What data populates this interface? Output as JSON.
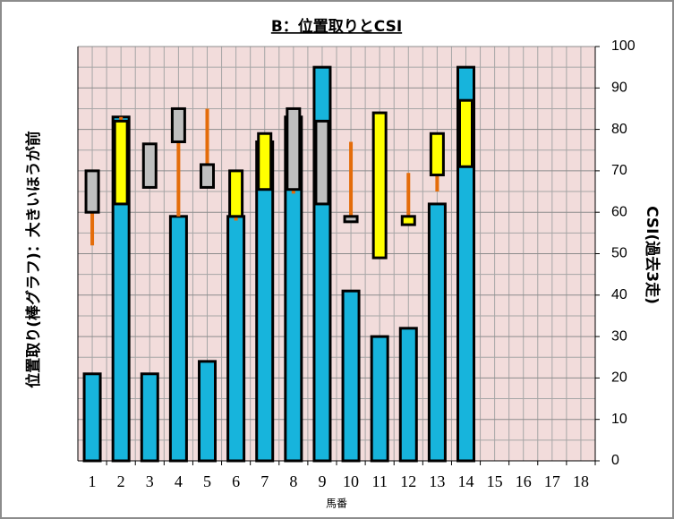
{
  "chart_data": {
    "type": "bar-range",
    "title": "B：位置取りとCSI",
    "x_label": "馬番",
    "y_label": "位置取り(棒グラフ)：大きいほうが前",
    "y2_label": "CSI(過去3走)",
    "categories": [
      "1",
      "2",
      "3",
      "4",
      "5",
      "6",
      "7",
      "8",
      "9",
      "10",
      "11",
      "12",
      "13",
      "14",
      "15",
      "16",
      "17",
      "18"
    ],
    "values": [
      21,
      83,
      21,
      59,
      24,
      59,
      77,
      83,
      95,
      41,
      30,
      32,
      62,
      95,
      0,
      0,
      0,
      0
    ],
    "color": "#17b4dc",
    "ranges": {
      "low": [
        60,
        62,
        66,
        77,
        66,
        59,
        65.5,
        65.5,
        62,
        57.7,
        49,
        57,
        69,
        71,
        null,
        null,
        null,
        null
      ],
      "high": [
        70,
        82,
        76.5,
        85,
        71.5,
        70,
        79,
        85,
        82,
        59,
        84,
        59,
        79,
        87,
        null,
        null,
        null,
        null
      ],
      "min": [
        52,
        62,
        66,
        59,
        66,
        58,
        65.5,
        64.5,
        62,
        57.7,
        49,
        57,
        65,
        71,
        null,
        null,
        null,
        null
      ],
      "max": [
        70,
        83,
        76.5,
        85,
        85,
        70,
        79,
        85,
        82,
        77,
        84,
        69.5,
        79,
        87,
        null,
        null,
        null,
        null
      ],
      "colors": [
        "#bfbfbf",
        "#ffff00",
        "#bfbfbf",
        "#bfbfbf",
        "#bfbfbf",
        "#ffff00",
        "#ffff00",
        "#bfbfbf",
        "#bfbfbf",
        "#bfbfbf",
        "#ffff00",
        "#ffff00",
        "#ffff00",
        "#ffff00",
        null,
        null,
        null,
        null
      ],
      "whisker_color": "#e46c0a"
    },
    "ylim": [
      0,
      100
    ],
    "y2lim": [
      0,
      100
    ],
    "y2ticks": [
      0,
      10,
      20,
      30,
      40,
      50,
      60,
      70,
      80,
      90,
      100
    ],
    "grid": true
  }
}
